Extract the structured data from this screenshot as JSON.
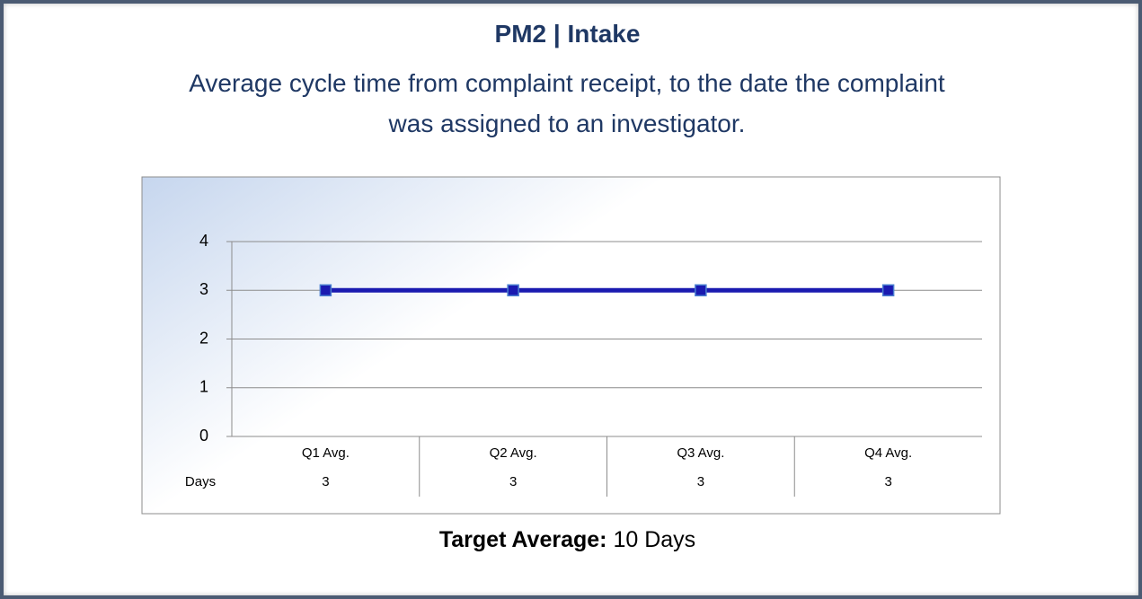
{
  "chart_data": {
    "type": "line",
    "title": "PM2 | Intake",
    "subtitle": "Average cycle time from complaint receipt, to the date the complaint was assigned to an investigator.",
    "categories": [
      "Q1 Avg.",
      "Q2 Avg.",
      "Q3 Avg.",
      "Q4 Avg."
    ],
    "series": [
      {
        "name": "Days",
        "color": "#1a1ab0",
        "values": [
          3,
          3,
          3,
          3
        ]
      }
    ],
    "ylim": [
      0,
      4
    ],
    "yticks": [
      0,
      1,
      2,
      3,
      4
    ],
    "grid": true,
    "data_table": true,
    "footer": {
      "label": "Target Average:",
      "text": "10 Days"
    }
  }
}
